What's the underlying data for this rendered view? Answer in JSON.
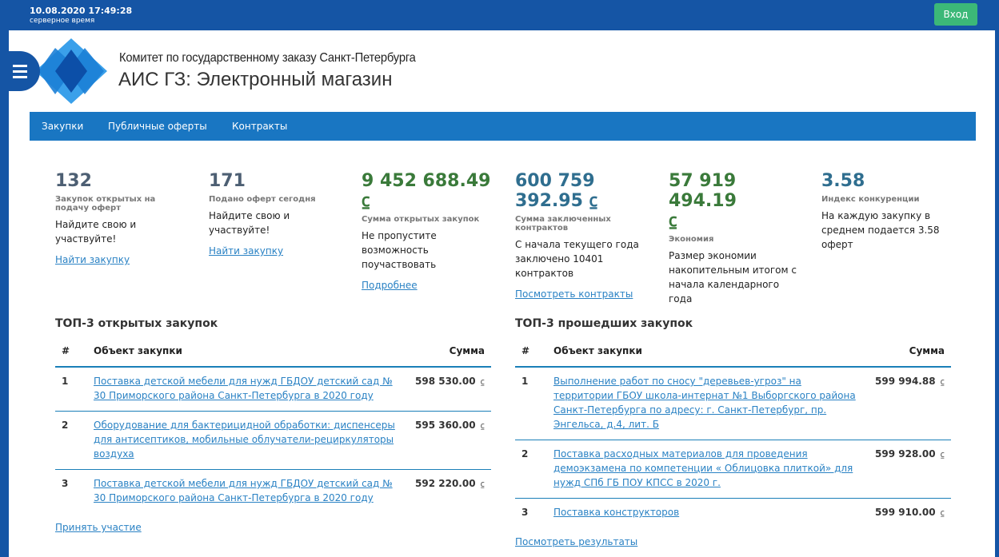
{
  "header": {
    "datetime": "10.08.2020 17:49:28",
    "server_time_label": "серверное время",
    "login_label": "Вход",
    "org_name": "Комитет по государственному заказу Санкт-Петербурга",
    "app_name": "АИС ГЗ: Электронный магазин"
  },
  "nav": {
    "items": [
      "Закупки",
      "Публичные оферты",
      "Контракты"
    ]
  },
  "stats": [
    {
      "value": "132",
      "label": "Закупок открытых на подачу оферт",
      "desc": "Найдите свою и участвуйте!",
      "link": "Найти закупку"
    },
    {
      "value": "171",
      "label": "Подано оферт сегодня",
      "desc": "Найдите свою и участвуйте!",
      "link": "Найти закупку"
    },
    {
      "value": "9 452 688.49",
      "label": "Сумма открытых закупок",
      "desc": "Не пропустите возможность поучаствовать",
      "link": "Подробнее"
    },
    {
      "value": "600 759 392.95",
      "label": "Сумма заключенных контрактов",
      "desc": "С начала текущего года заключено 10401 контрактов",
      "link": "Посмотреть контракты"
    },
    {
      "value": "57 919 494.19",
      "label": "Экономия",
      "desc": "Размер экономии накопительным итогом с начала календарного года",
      "link": ""
    },
    {
      "value": "3.58",
      "label": "Индекс конкуренции",
      "desc": "На каждую закупку в среднем подается 3.58 оферт",
      "link": ""
    }
  ],
  "currency_glyph": "⃀",
  "top_open": {
    "title": "ТОП-3 открытых закупок",
    "columns": {
      "num": "#",
      "obj": "Объект закупки",
      "sum": "Сумма"
    },
    "rows": [
      {
        "num": "1",
        "obj": "Поставка детской мебели для нужд ГБДОУ детский сад № 30 Приморского района Санкт-Петербурга в 2020 году",
        "sum": "598 530.00"
      },
      {
        "num": "2",
        "obj": "Оборудование для бактерицидной обработки: диспенсеры для антисептиков, мобильные облучатели-рециркуляторы воздуха",
        "sum": "595 360.00"
      },
      {
        "num": "3",
        "obj": "Поставка детской мебели для нужд ГБДОУ детский сад № 30 Приморского района Санкт-Петербурга в 2020 году",
        "sum": "592 220.00"
      }
    ],
    "more_link": "Принять участие"
  },
  "top_past": {
    "title": "ТОП-3 прошедших закупок",
    "columns": {
      "num": "#",
      "obj": "Объект закупки",
      "sum": "Сумма"
    },
    "rows": [
      {
        "num": "1",
        "obj": "Выполнение работ по сносу \"деревьев-угроз\" на территории ГБОУ школа-интернат №1 Выборгского района Санкт-Петербурга по адресу: г. Санкт-Петербург, пр. Энгельса, д.4, лит. Б",
        "sum": "599 994.88"
      },
      {
        "num": "2",
        "obj": "Поставка расходных материалов для проведения демоэкзамена по компетенции « Облицовка плиткой» для нужд СПб ГБ ПОУ КПСС в 2020 г.",
        "sum": "599 928.00"
      },
      {
        "num": "3",
        "obj": "Поставка конструкторов",
        "sum": "599 910.00"
      }
    ],
    "more_link": "Посмотреть результаты"
  }
}
